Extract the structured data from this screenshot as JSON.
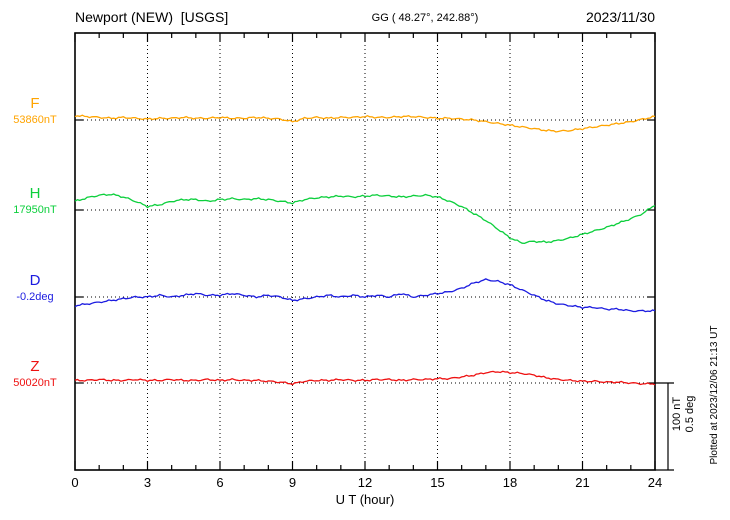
{
  "header": {
    "title": "Newport (NEW)  [USGS]",
    "coords": "GG ( 48.27°, 242.88°)",
    "date": "2023/11/30"
  },
  "axis": {
    "x_ticks": [
      "0",
      "3",
      "6",
      "9",
      "12",
      "15",
      "18",
      "21",
      "24"
    ],
    "x_label": "U T (hour)"
  },
  "scale_note": {
    "line1": "100 nT",
    "line2": "0.5 deg"
  },
  "plotted_note": "Plotted at 2023/12/06 21:13 UT",
  "chart_data": {
    "type": "line",
    "title": "Newport (NEW) [USGS] magnetogram 2023/11/30",
    "xlabel": "U T (hour)",
    "x_range": [
      0,
      24
    ],
    "x_step_hours": 0.5,
    "grid": "dotted vertical every 3 hours, dotted horizontal baseline per trace",
    "scale": {
      "nT_per_div": 100,
      "deg_per_div": 0.5
    },
    "series": [
      {
        "id": "F",
        "label": "F",
        "baseline_label": "53860nT",
        "baseline_value": 53860,
        "unit": "nT",
        "color": "#ffa400",
        "offsets": [
          5,
          4,
          3,
          2,
          3,
          2,
          1,
          2,
          2,
          3,
          2,
          2,
          3,
          2,
          2,
          3,
          2,
          1,
          -2,
          2,
          3,
          2,
          3,
          3,
          4,
          3,
          3,
          4,
          4,
          3,
          2,
          2,
          1,
          0,
          -2,
          -4,
          -6,
          -8,
          -10,
          -12,
          -13,
          -12,
          -10,
          -8,
          -6,
          -4,
          -2,
          1,
          4
        ]
      },
      {
        "id": "H",
        "label": "H",
        "baseline_label": "17950nT",
        "baseline_value": 17950,
        "unit": "nT",
        "color": "#0ccf3c",
        "offsets": [
          10,
          14,
          17,
          18,
          15,
          10,
          4,
          6,
          10,
          12,
          12,
          10,
          12,
          13,
          12,
          13,
          12,
          10,
          8,
          12,
          14,
          15,
          16,
          15,
          16,
          17,
          16,
          15,
          16,
          17,
          15,
          10,
          4,
          -4,
          -12,
          -22,
          -32,
          -38,
          -36,
          -37,
          -35,
          -32,
          -28,
          -24,
          -20,
          -15,
          -10,
          -4,
          6
        ]
      },
      {
        "id": "D",
        "label": "D",
        "baseline_label": "-0.2deg",
        "baseline_value": -0.2,
        "unit": "deg",
        "color": "#1b1be0",
        "offsets": [
          -0.05,
          -0.04,
          -0.03,
          -0.02,
          -0.01,
          0,
          0,
          0.01,
          0,
          0.01,
          0.02,
          0.01,
          0.01,
          0.02,
          0.01,
          0,
          0.01,
          0,
          -0.02,
          -0.01,
          0,
          0.01,
          0,
          0.01,
          0,
          0.01,
          0,
          0.02,
          0,
          0.01,
          0.02,
          0.03,
          0.05,
          0.08,
          0.1,
          0.09,
          0.07,
          0.04,
          0.01,
          -0.02,
          -0.04,
          -0.05,
          -0.06,
          -0.06,
          -0.07,
          -0.07,
          -0.08,
          -0.08,
          -0.08
        ]
      },
      {
        "id": "Z",
        "label": "Z",
        "baseline_label": "50020nT",
        "baseline_value": 50020,
        "unit": "nT",
        "color": "#ee1111",
        "offsets": [
          3,
          3,
          4,
          3,
          3,
          4,
          3,
          3,
          4,
          3,
          3,
          4,
          3,
          4,
          3,
          3,
          2,
          1,
          -1,
          2,
          3,
          3,
          4,
          3,
          3,
          4,
          4,
          3,
          4,
          4,
          5,
          5,
          7,
          9,
          12,
          13,
          12,
          11,
          9,
          6,
          4,
          3,
          2,
          2,
          1,
          1,
          0,
          -1,
          -1
        ]
      }
    ]
  }
}
